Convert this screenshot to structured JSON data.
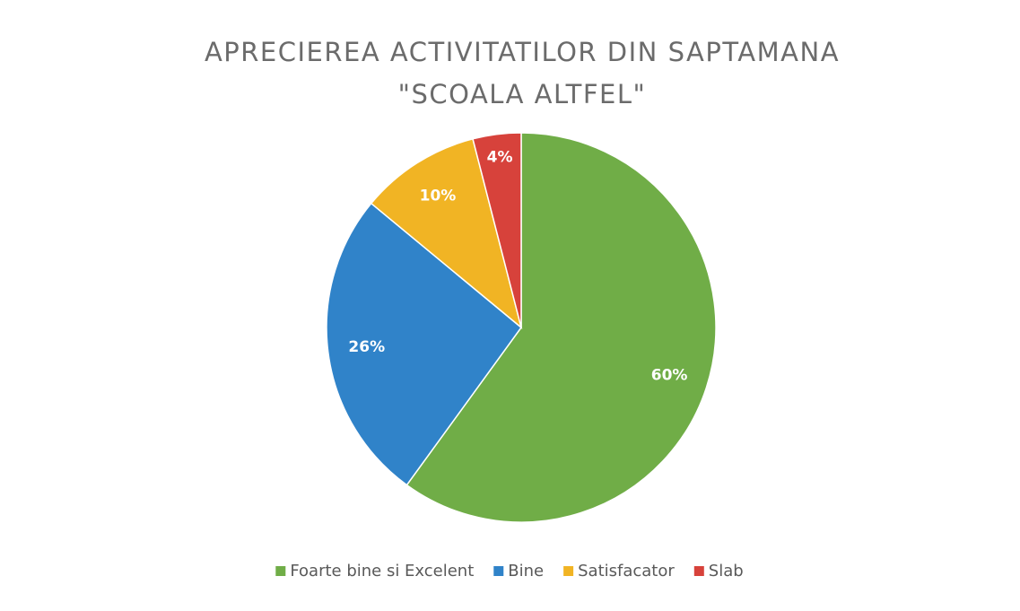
{
  "chart_data": {
    "type": "pie",
    "title": [
      "APRECIEREA ACTIVITATILOR DIN SAPTAMANA",
      "\"SCOALA ALTFEL\""
    ],
    "categories": [
      "Foarte bine si Excelent",
      "Bine",
      "Satisfacator",
      "Slab"
    ],
    "values": [
      60,
      26,
      10,
      4
    ],
    "value_labels": [
      "60%",
      "26%",
      "10%",
      "4%"
    ],
    "colors": [
      "#70ad47",
      "#3083c9",
      "#f1b424",
      "#d7423b"
    ],
    "legend": "bottom"
  }
}
